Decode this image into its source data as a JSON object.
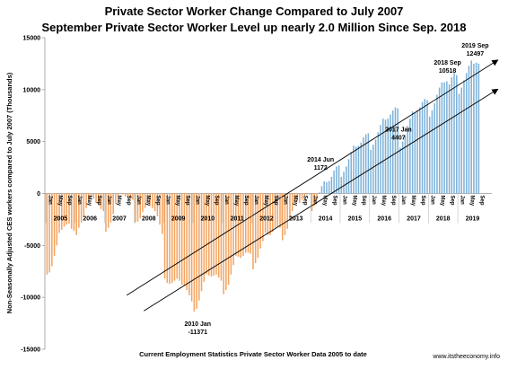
{
  "chart_data": {
    "type": "bar",
    "title_line1": "Private Sector Worker Change Compared to July 2007",
    "title_line2": "September Private Sector Worker Level up nearly 2.0 Million Since Sep. 2018",
    "ylabel": "Non-Seasonally Adjusted CES workers compared to July 2007 (Thousands)",
    "xlabel": "Current Employment Statistics Private Sector Worker Data 2005 to date",
    "source": "www.itstheeconomy.info",
    "ylim": [
      -15000,
      15000
    ],
    "y_ticks": [
      "15000",
      "10000",
      "5000",
      "0",
      "-5000",
      "-10000",
      "-15000"
    ],
    "y_tick_values": [
      15000,
      10000,
      5000,
      0,
      -5000,
      -10000,
      -15000
    ],
    "years": [
      "2005",
      "2006",
      "2007",
      "2008",
      "2009",
      "2010",
      "2011",
      "2012",
      "2013",
      "2014",
      "2015",
      "2016",
      "2017",
      "2018",
      "2019"
    ],
    "month_labels": [
      "Jan",
      "May",
      "Sep"
    ],
    "negative_color": "#f4a460",
    "positive_color": "#7fb2d8",
    "series_note": "Monthly values Jan 2005 – Sep 2019",
    "values": [
      -7800,
      -7600,
      -7000,
      -6000,
      -5000,
      -3800,
      -3500,
      -3200,
      -3000,
      -2900,
      -3400,
      -3600,
      -4000,
      -3300,
      -2800,
      -2200,
      -1400,
      -600,
      -300,
      -500,
      -900,
      -1000,
      -1500,
      -1700,
      -3700,
      -3300,
      -2800,
      -2000,
      -1000,
      -200,
      0,
      -100,
      -300,
      -300,
      -500,
      -600,
      -2800,
      -2700,
      -2400,
      -1800,
      -1400,
      -900,
      -1200,
      -1400,
      -1700,
      -2200,
      -3000,
      -3900,
      -8200,
      -8600,
      -8700,
      -8600,
      -8400,
      -8200,
      -8400,
      -8800,
      -8900,
      -9300,
      -9800,
      -10400,
      -11371,
      -11100,
      -10300,
      -9400,
      -8500,
      -7800,
      -7900,
      -8000,
      -7900,
      -7800,
      -8100,
      -8400,
      -9700,
      -9300,
      -8800,
      -7800,
      -6900,
      -6000,
      -6100,
      -6200,
      -6000,
      -5700,
      -5700,
      -5800,
      -7300,
      -6700,
      -6200,
      -5300,
      -4600,
      -3800,
      -4000,
      -4000,
      -3700,
      -3300,
      -3200,
      -3300,
      -4500,
      -4000,
      -3400,
      -2500,
      -1700,
      -800,
      -800,
      -900,
      -600,
      -200,
      -100,
      -100,
      -1700,
      -1200,
      -600,
      100,
      700,
      1172,
      1100,
      1200,
      1600,
      2200,
      2600,
      2700,
      1600,
      2100,
      2600,
      3300,
      4000,
      4600,
      4500,
      4600,
      4900,
      5400,
      5700,
      5800,
      4200,
      4700,
      5200,
      5900,
      6600,
      7200,
      7100,
      7200,
      7600,
      8000,
      8300,
      8200,
      4407,
      5000,
      5600,
      6500,
      7200,
      7900,
      7800,
      8000,
      8300,
      8800,
      9100,
      9000,
      7400,
      8000,
      8700,
      9500,
      10200,
      10700,
      10700,
      10800,
      10518,
      11200,
      11600,
      11400,
      9600,
      10200,
      10900,
      11600,
      12300,
      12800,
      12500,
      12600,
      12497
    ],
    "annotations": [
      {
        "label_line1": "2010 Jan",
        "label_line2": "-11371",
        "index": 60
      },
      {
        "label_line1": "2014 Jun",
        "label_line2": "1172",
        "index": 113
      },
      {
        "label_line1": "2017 Jan",
        "label_line2": "4407",
        "index": 144
      },
      {
        "label_line1": "2018 Sep",
        "label_line2": "10518",
        "index": 164
      },
      {
        "label_line1": "2019 Sep",
        "label_line2": "12497",
        "index": 176
      }
    ],
    "trend_lines": [
      {
        "from": [
          33,
          -9800
        ],
        "to": [
          184,
          12800
        ]
      },
      {
        "from": [
          40,
          -11300
        ],
        "to": [
          184,
          10000
        ]
      }
    ]
  }
}
